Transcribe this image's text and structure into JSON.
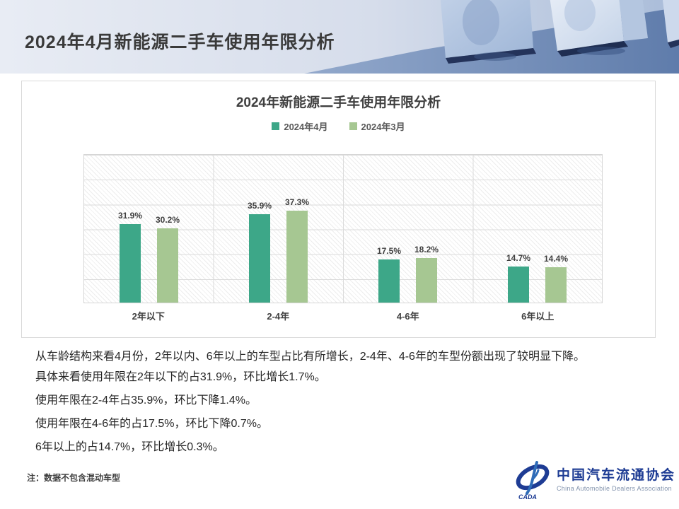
{
  "header": {
    "title": "2024年4月新能源二手车使用年限分析"
  },
  "chart_data": {
    "type": "bar",
    "title": "2024年新能源二手车使用年限分析",
    "categories": [
      "2年以下",
      "2-4年",
      "4-6年",
      "6年以上"
    ],
    "series": [
      {
        "name": "2024年4月",
        "color": "#3da788",
        "values": [
          31.9,
          35.9,
          17.5,
          14.7
        ]
      },
      {
        "name": "2024年3月",
        "color": "#a6c792",
        "values": [
          30.2,
          37.3,
          18.2,
          14.4
        ]
      }
    ],
    "ylim": [
      0,
      60
    ],
    "gridline_interval": 10,
    "grid": true,
    "legend_position": "top",
    "value_suffix": "%",
    "xlabel": "",
    "ylabel": ""
  },
  "analysis": {
    "paragraphs": [
      "从车龄结构来看4月份，2年以内、6年以上的车型占比有所增长，2-4年、4-6年的车型份额出现了较明显下降。",
      "具体来看使用年限在2年以下的占31.9%，环比增长1.7%。",
      "使用年限在2-4年占35.9%，环比下降1.4%。",
      "使用年限在4-6年的占17.5%，环比下降0.7%。",
      "6年以上的占14.7%，环比增长0.3%。"
    ]
  },
  "footer": {
    "note": "注：数据不包含混动车型"
  },
  "logo": {
    "cn": "中国汽车流通协会",
    "en": "China Automobile Dealers Association",
    "badge": "CADA",
    "color": "#1e3c94"
  },
  "colors": {
    "series_april": "#3da788",
    "series_march": "#a6c792",
    "gridline": "#dbdbdb",
    "card_border": "#d9d9d9",
    "header_light": "#dde3ef",
    "header_blue": "#7c96bf",
    "title_text": "#3a3a3a"
  }
}
